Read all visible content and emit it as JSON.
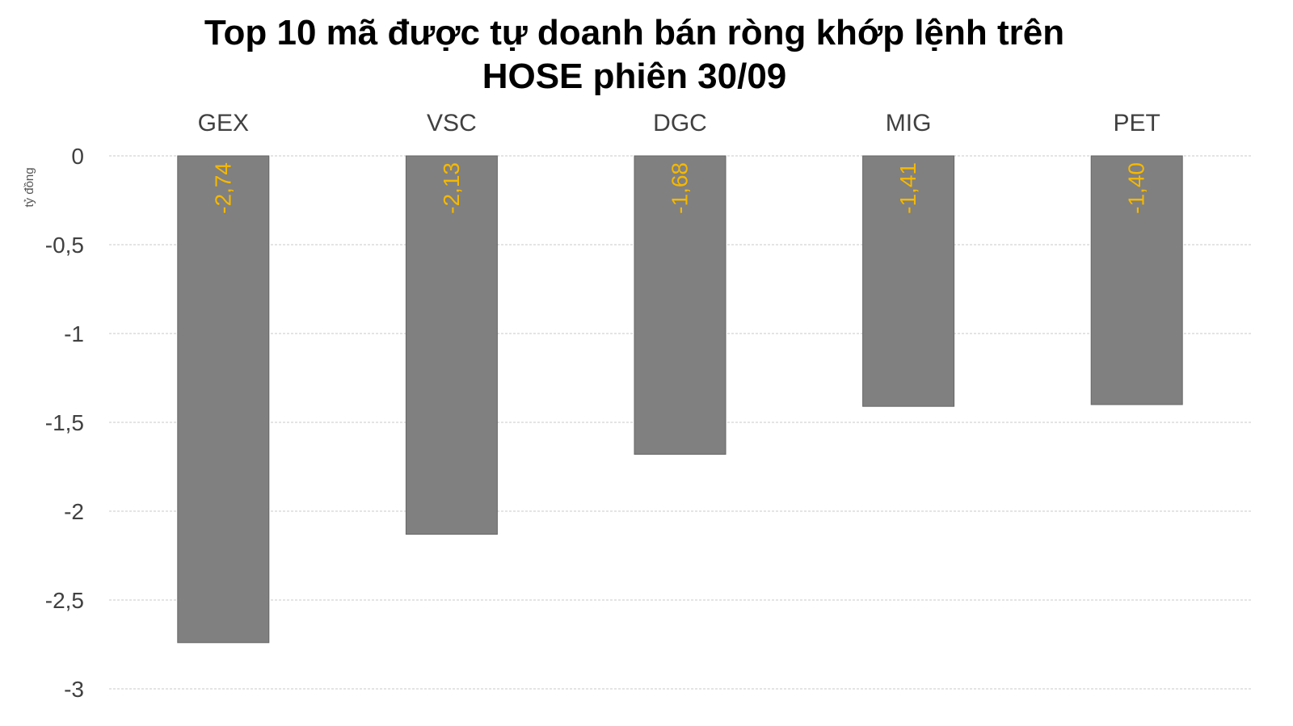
{
  "chart_data": {
    "type": "bar",
    "title": [
      "Top 10 mã được tự doanh bán ròng khớp lệnh trên",
      "HOSE phiên 30/09"
    ],
    "ylabel": "tỷ đồng",
    "categories": [
      "GEX",
      "VSC",
      "DGC",
      "MIG",
      "PET"
    ],
    "values": [
      -2.74,
      -2.13,
      -1.68,
      -1.41,
      -1.4
    ],
    "data_labels": [
      "-2,74",
      "-2,13",
      "-1,68",
      "-1,41",
      "-1,40"
    ],
    "ylim": [
      -3,
      0
    ],
    "yticks": [
      0,
      -0.5,
      -1,
      -1.5,
      -2,
      -2.5,
      -3
    ],
    "ytick_labels": [
      "0",
      "-0,5",
      "-1",
      "-1,5",
      "-2",
      "-2,5",
      "-3"
    ],
    "x_axis_position": "top",
    "grid": true,
    "colors": {
      "bar": "#808080",
      "data_label": "#f5b800"
    }
  }
}
